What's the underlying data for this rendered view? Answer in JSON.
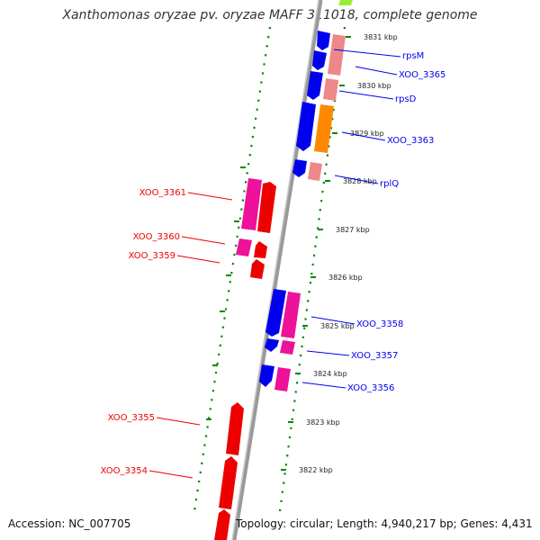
{
  "header": {
    "title": "Xanthomonas oryzae pv. oryzae MAFF 311018, complete genome"
  },
  "footer": {
    "accession": "Accession: NC_007705",
    "topology": "Topology: circular; Length: 4,940,217 bp; Genes: 4,431"
  },
  "scale": [
    {
      "label": "3831 kbp"
    },
    {
      "label": "3830 kbp"
    },
    {
      "label": "3829 kbp"
    },
    {
      "label": "3828 kbp"
    },
    {
      "label": "3827 kbp"
    },
    {
      "label": "3826 kbp"
    },
    {
      "label": "3825 kbp"
    },
    {
      "label": "3824 kbp"
    },
    {
      "label": "3823 kbp"
    },
    {
      "label": "3822 kbp"
    }
  ],
  "colors": {
    "forward_strand": "#0000ee",
    "reverse_strand": "#ee0000",
    "backbone": "#999999",
    "guide_dots": "#008800",
    "pink": "#ee1199",
    "salmon": "#ee8888",
    "orange": "#ff8800",
    "lime": "#99ee33"
  },
  "genes_right": [
    {
      "name": "rpsM"
    },
    {
      "name": "XOO_3365"
    },
    {
      "name": "rpsD"
    },
    {
      "name": "XOO_3363"
    },
    {
      "name": "rplQ"
    },
    {
      "name": "XOO_3358"
    },
    {
      "name": "XOO_3357"
    },
    {
      "name": "XOO_3356"
    }
  ],
  "genes_left": [
    {
      "name": "XOO_3361"
    },
    {
      "name": "XOO_3360"
    },
    {
      "name": "XOO_3359"
    },
    {
      "name": "XOO_3355"
    },
    {
      "name": "XOO_3354"
    }
  ]
}
